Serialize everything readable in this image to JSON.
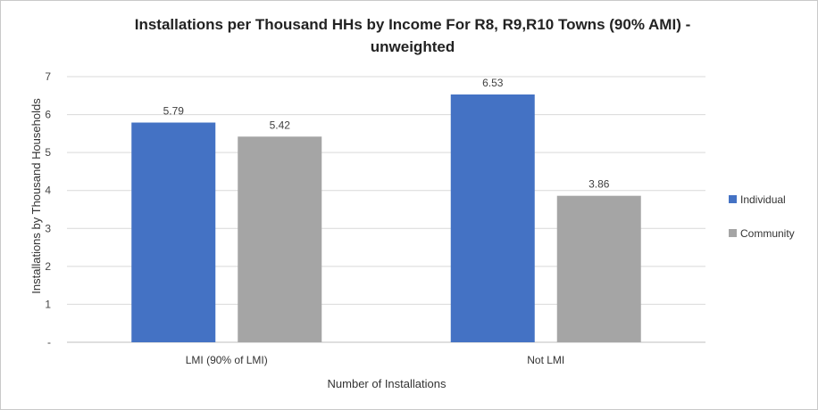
{
  "chart_data": {
    "type": "bar",
    "title_line1": "Installations per Thousand HHs by Income For R8, R9,R10 Towns (90% AMI) -",
    "title_line2": "unweighted",
    "xlabel": "Number of Installations",
    "ylabel": "Installations by Thousand Households",
    "categories": [
      "LMI (90% of LMI)",
      "Not LMI"
    ],
    "series": [
      {
        "name": "Individual",
        "values": [
          5.79,
          6.53
        ],
        "labels": [
          "5.79",
          "6.53"
        ],
        "color": "#4472C4"
      },
      {
        "name": "Community",
        "values": [
          5.42,
          3.86
        ],
        "labels": [
          "5.42",
          "3.86"
        ],
        "color": "#A5A5A5"
      }
    ],
    "ylim": [
      0,
      7
    ],
    "yticks": [
      "-",
      "1",
      "2",
      "3",
      "4",
      "5",
      "6",
      "7"
    ],
    "grid": true,
    "legend_position": "right"
  }
}
